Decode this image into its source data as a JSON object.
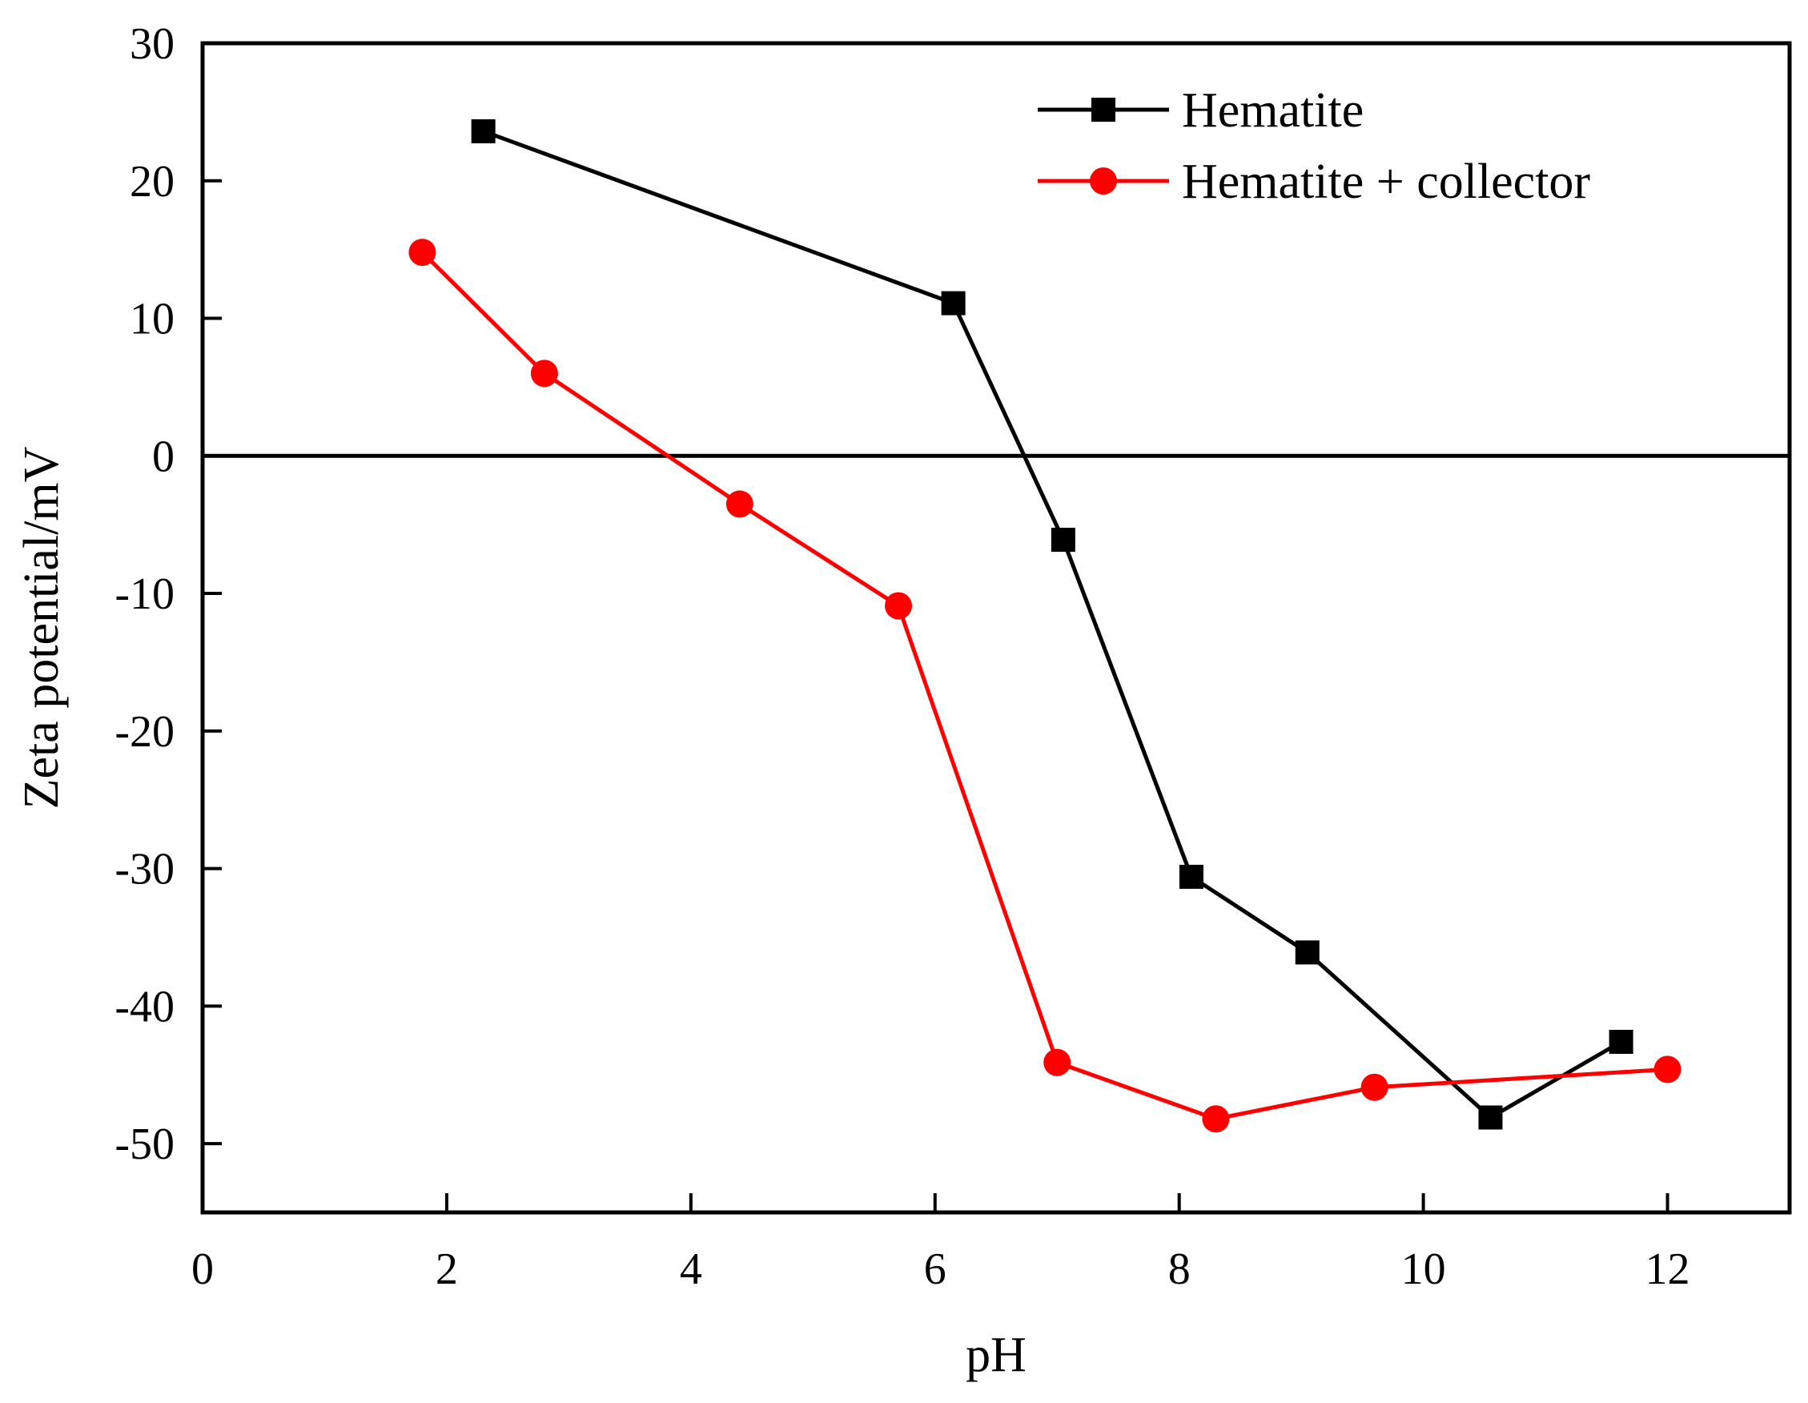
{
  "chart_data": {
    "type": "line",
    "title": "",
    "xlabel": "pH",
    "ylabel": "Zeta potential/mV",
    "xlim": [
      0,
      13
    ],
    "ylim": [
      -55,
      30
    ],
    "xticks": [
      0,
      2,
      4,
      6,
      8,
      10,
      12
    ],
    "yticks": [
      30,
      20,
      10,
      0,
      -10,
      -20,
      -30,
      -40,
      -50
    ],
    "zero_line": true,
    "grid": false,
    "legend_position": "top-right",
    "series": [
      {
        "name": "Hematite",
        "color": "#000000",
        "marker": "square",
        "x": [
          2.3,
          6.15,
          7.05,
          8.1,
          9.05,
          10.55,
          11.62
        ],
        "y": [
          23.6,
          11.1,
          -6.1,
          -30.6,
          -36.1,
          -48.1,
          -42.6
        ]
      },
      {
        "name": "Hematite + collector",
        "color": "#ff0000",
        "marker": "circle",
        "x": [
          1.8,
          2.8,
          4.4,
          5.7,
          7.0,
          8.3,
          9.6,
          12.0
        ],
        "y": [
          14.8,
          6.0,
          -3.5,
          -10.9,
          -44.1,
          -48.2,
          -45.9,
          -44.6
        ]
      }
    ]
  }
}
